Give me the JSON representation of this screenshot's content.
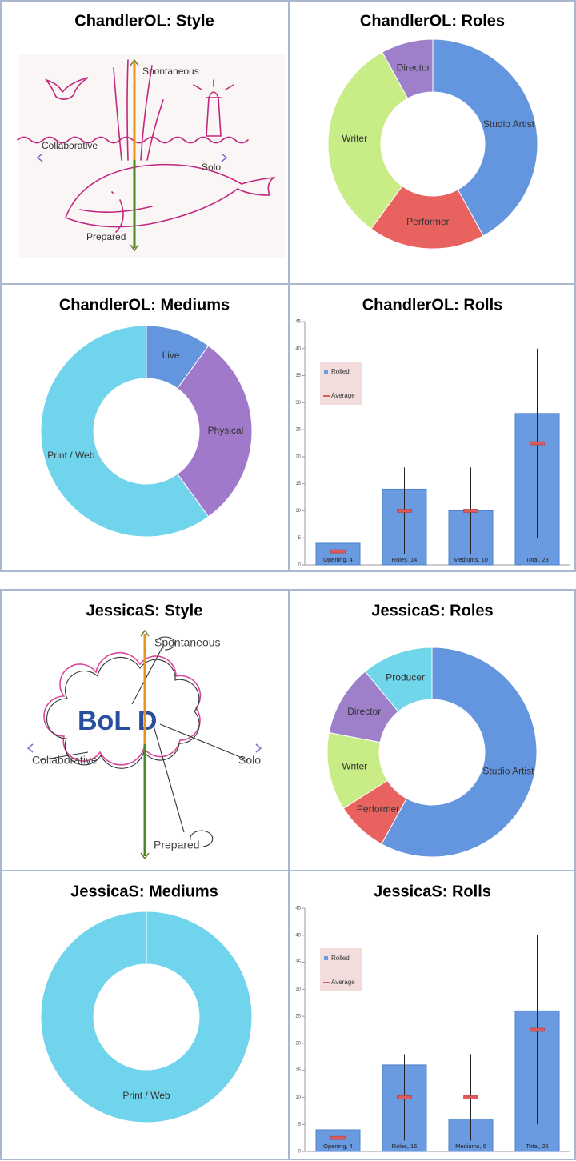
{
  "chart_data": [
    {
      "type": "quadrant",
      "title": "ChandlerOL: Style",
      "labels": {
        "top": "Spontaneous",
        "left": "Collaborative",
        "right": "Solo",
        "bottom": "Prepared"
      }
    },
    {
      "type": "donut",
      "title": "ChandlerOL: Roles",
      "categories": [
        "Studio Artist",
        "Performer",
        "Writer",
        "Director"
      ],
      "values": [
        42,
        18,
        32,
        8
      ],
      "colors": [
        "#6396de",
        "#e8635f",
        "#c8ec86",
        "#9d80c9"
      ]
    },
    {
      "type": "donut",
      "title": "ChandlerOL: Mediums",
      "categories": [
        "Live",
        "Physical",
        "Print / Web"
      ],
      "values": [
        10,
        30,
        60
      ],
      "colors": [
        "#6396de",
        "#a079cb",
        "#6fd4ec"
      ]
    },
    {
      "type": "bar",
      "title": "ChandlerOL: Rolls",
      "ylim": [
        0,
        45
      ],
      "yticks": [
        0,
        5,
        10,
        15,
        20,
        25,
        30,
        35,
        40,
        45
      ],
      "legend": "upper left",
      "series": [
        {
          "name": "Rolled",
          "color": "#6a9be0",
          "values": [
            4,
            14,
            10,
            28
          ],
          "value_labels": [
            "Opening, 4",
            "Roles, 14",
            "Mediums, 10",
            "Total, 28"
          ]
        },
        {
          "name": "Average",
          "color": "#e0595a",
          "values": [
            2.5,
            10,
            10,
            22.5
          ],
          "low": [
            2,
            2,
            2,
            5
          ],
          "high": [
            4,
            18,
            18,
            40
          ]
        }
      ]
    },
    {
      "type": "quadrant",
      "title": "JessicaS: Style",
      "labels": {
        "top": "Spontaneous",
        "left": "Collaborative",
        "right": "Solo",
        "bottom": "Prepared"
      },
      "annotation": "BoL D"
    },
    {
      "type": "donut",
      "title": "JessicaS: Roles",
      "categories": [
        "Studio Artist",
        "Performer",
        "Writer",
        "Director",
        "Producer"
      ],
      "values": [
        58,
        8,
        12,
        11,
        11
      ],
      "colors": [
        "#6396de",
        "#e8635f",
        "#c8ec86",
        "#9d80c9",
        "#70d6ea"
      ]
    },
    {
      "type": "donut",
      "title": "JessicaS: Mediums",
      "categories": [
        "Print / Web"
      ],
      "values": [
        100
      ],
      "colors": [
        "#6fd4ec"
      ]
    },
    {
      "type": "bar",
      "title": "JessicaS: Rolls",
      "ylim": [
        0,
        45
      ],
      "yticks": [
        0,
        5,
        10,
        15,
        20,
        25,
        30,
        35,
        40,
        45
      ],
      "legend": "upper left",
      "series": [
        {
          "name": "Rolled",
          "color": "#6a9be0",
          "values": [
            4,
            16,
            6,
            26
          ],
          "value_labels": [
            "Opening, 4",
            "Roles, 16",
            "Mediums, 6",
            "Total, 26"
          ]
        },
        {
          "name": "Average",
          "color": "#e0595a",
          "values": [
            2.5,
            10,
            10,
            22.5
          ],
          "low": [
            2,
            2,
            2,
            5
          ],
          "high": [
            4,
            18,
            18,
            40
          ]
        }
      ]
    }
  ]
}
